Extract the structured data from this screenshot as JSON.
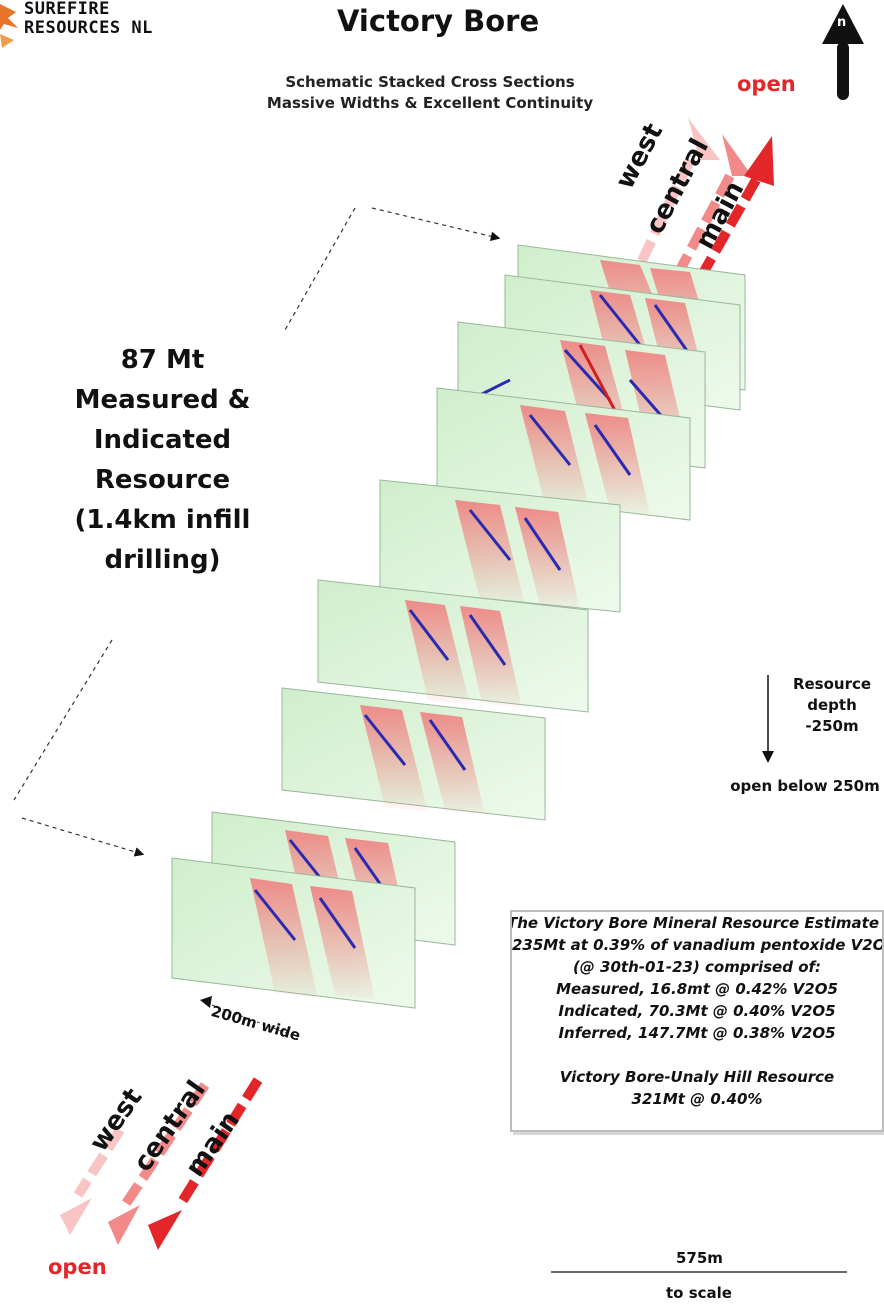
{
  "header": {
    "logo_line1": "SUREFIRE",
    "logo_line2": "RESOURCES NL",
    "title": "Victory Bore",
    "subtitle_line1": "Schematic Stacked Cross Sections",
    "subtitle_line2": "Massive Widths & Excellent Continuity",
    "north_letter": "n"
  },
  "top_labels": {
    "open": "open",
    "west": "west",
    "central": "central",
    "main": "main"
  },
  "bottom_labels": {
    "open": "open",
    "west": "west",
    "central": "central",
    "main": "main"
  },
  "resource_callout": {
    "line1": "87 Mt",
    "line2": "Measured &",
    "line3": "Indicated",
    "line4": "Resource",
    "line5": "(1.4km infill",
    "line6": "drilling)"
  },
  "depth": {
    "line1": "Resource",
    "line2": "depth",
    "line3": "-250m",
    "open_below": "open below 250m"
  },
  "width_label": "200m wide",
  "resource_box": {
    "lines": [
      "The Victory Bore Mineral Resource Estimate",
      "235Mt at 0.39% of vanadium pentoxide V2O5",
      "(@ 30th-01-23) comprised of:",
      "Measured, 16.8mt @ 0.42% V2O5",
      "Indicated, 70.3Mt @ 0.40% V2O5",
      "Inferred, 147.7Mt @ 0.38% V2O5",
      "",
      "Victory Bore-Unaly Hill Resource",
      "321Mt @ 0.40%"
    ]
  },
  "scale": {
    "length": "575m",
    "caption": "to scale"
  },
  "colors": {
    "accent_red": "#e3262a",
    "section_green": "#bfe8b8",
    "zone_red": "#f06a6a",
    "logo_orange": "#e8742a"
  }
}
